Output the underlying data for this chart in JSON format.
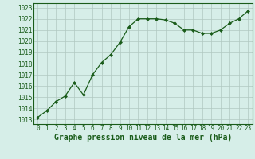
{
  "x": [
    0,
    1,
    2,
    3,
    4,
    5,
    6,
    7,
    8,
    9,
    10,
    11,
    12,
    13,
    14,
    15,
    16,
    17,
    18,
    19,
    20,
    21,
    22,
    23
  ],
  "y": [
    1013.2,
    1013.8,
    1014.6,
    1015.1,
    1016.3,
    1015.2,
    1017.0,
    1018.1,
    1018.8,
    1019.9,
    1021.3,
    1022.0,
    1022.0,
    1022.0,
    1021.9,
    1021.6,
    1021.0,
    1021.0,
    1020.7,
    1020.7,
    1021.0,
    1021.6,
    1022.0,
    1022.7
  ],
  "line_color": "#1a5c1a",
  "marker": "D",
  "marker_size": 2.0,
  "bg_color": "#d6eee8",
  "grid_color": "#b0c8c0",
  "xlabel": "Graphe pression niveau de la mer (hPa)",
  "xlabel_fontsize": 7,
  "ylabel_ticks": [
    1013,
    1014,
    1015,
    1016,
    1017,
    1018,
    1019,
    1020,
    1021,
    1022,
    1023
  ],
  "ylim": [
    1012.6,
    1023.4
  ],
  "xlim": [
    -0.5,
    23.5
  ],
  "xticks": [
    0,
    1,
    2,
    3,
    4,
    5,
    6,
    7,
    8,
    9,
    10,
    11,
    12,
    13,
    14,
    15,
    16,
    17,
    18,
    19,
    20,
    21,
    22,
    23
  ],
  "tick_fontsize": 5.5,
  "linewidth": 0.9
}
